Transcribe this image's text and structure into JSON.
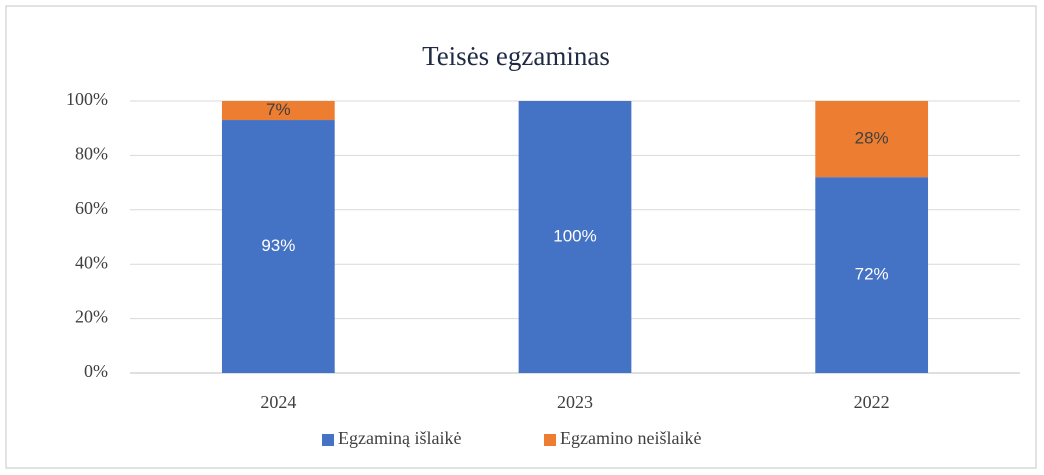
{
  "chart_data": {
    "type": "stacked_bar",
    "title": "Teisės egzaminas",
    "categories": [
      "2024",
      "2023",
      "2022"
    ],
    "series": [
      {
        "name": "Egzaminą išlaikė",
        "color": "#4472c4",
        "values": [
          93,
          100,
          72
        ],
        "value_labels": [
          "93%",
          "100%",
          "72%"
        ]
      },
      {
        "name": "Egzamino neišlaikė",
        "color": "#ed7d31",
        "values": [
          7,
          0,
          28
        ],
        "value_labels": [
          "7%",
          null,
          "28%"
        ]
      }
    ],
    "ylim": [
      0,
      100
    ],
    "yticks": [
      {
        "value": 0,
        "label": "0%"
      },
      {
        "value": 20,
        "label": "20%"
      },
      {
        "value": 40,
        "label": "40%"
      },
      {
        "value": 60,
        "label": "60%"
      },
      {
        "value": 80,
        "label": "80%"
      },
      {
        "value": 100,
        "label": "100%"
      }
    ],
    "grid": true,
    "legend": "bottom"
  }
}
